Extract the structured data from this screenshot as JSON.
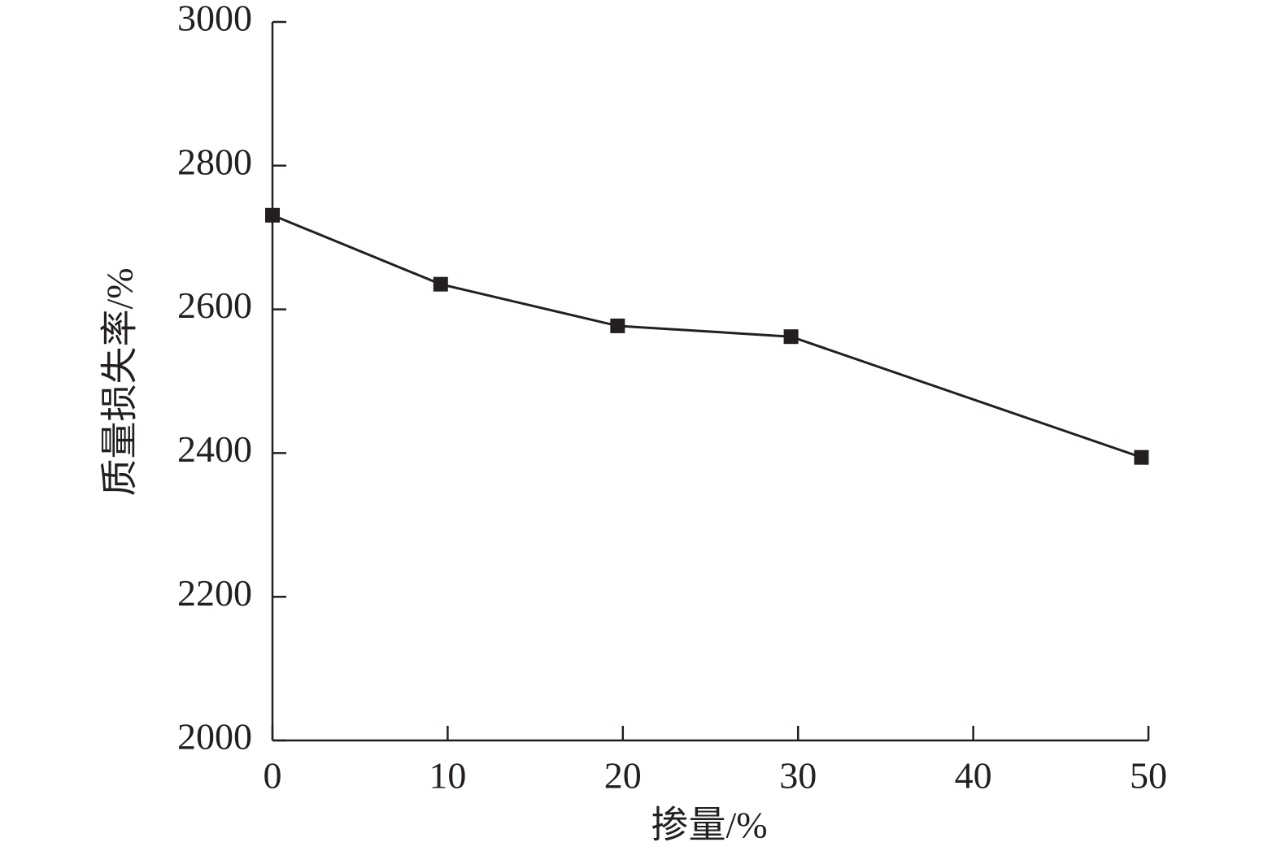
{
  "chart_data": {
    "type": "line",
    "x_label": "掺量/%",
    "y_label": "质量损失率/%",
    "x": [
      0,
      9.6,
      19.7,
      29.6,
      49.6
    ],
    "series": [
      {
        "color": "#231f20",
        "values": [
          2731,
          2635,
          2577,
          2562,
          2394
        ]
      }
    ],
    "xlim": [
      0,
      50
    ],
    "xticks": [
      0,
      10,
      20,
      30,
      40,
      50
    ],
    "ylim": [
      2000,
      3000
    ],
    "yticks": [
      2000,
      2200,
      2400,
      2600,
      2800,
      3000
    ],
    "grid": false
  }
}
